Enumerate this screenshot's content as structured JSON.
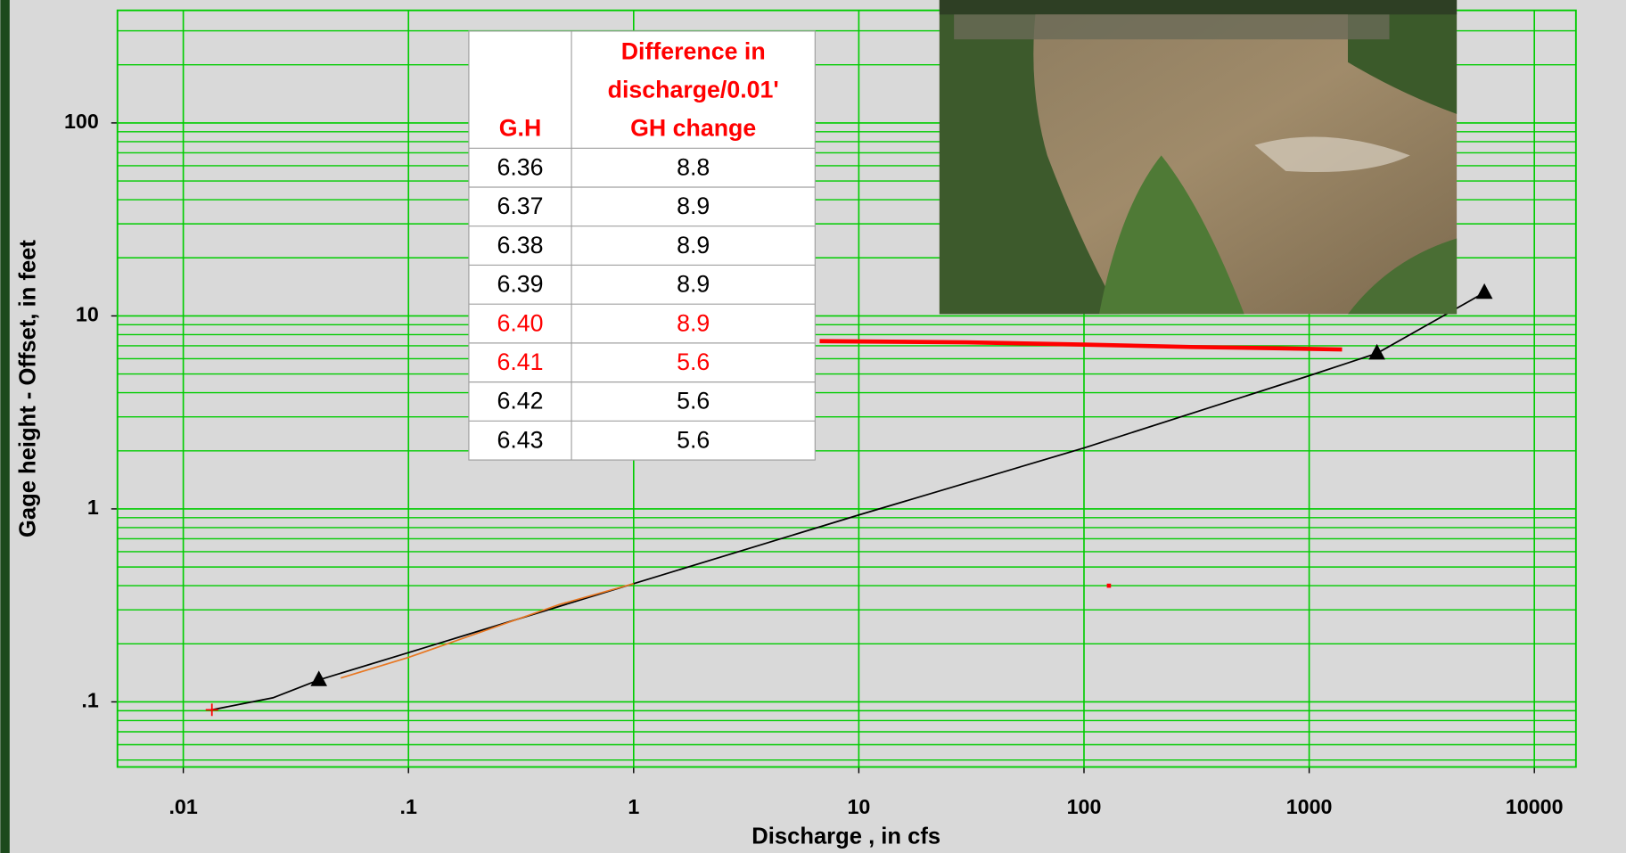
{
  "chart_data": {
    "type": "line",
    "x_label": "Discharge , in cfs",
    "y_label": "Gage height - Offset, in feet",
    "xscale": "log",
    "yscale": "log",
    "xlim": [
      0.0051,
      15300
    ],
    "ylim": [
      0.046,
      383
    ],
    "xticks": [
      {
        "value": 0.01,
        "label": ".01"
      },
      {
        "value": 0.1,
        "label": ".1"
      },
      1,
      10,
      100,
      1000,
      10000
    ],
    "yticks": [
      {
        "value": 0.1,
        "label": ".1"
      },
      1,
      10,
      100
    ],
    "y_minor_ticks": [
      0.05,
      0.06,
      0.07,
      0.08,
      0.09,
      0.2,
      0.3,
      0.4,
      0.5,
      0.6,
      0.7,
      0.8,
      0.9,
      2,
      3,
      4,
      5,
      6,
      7,
      8,
      9,
      20,
      30,
      40,
      50,
      60,
      70,
      80,
      90,
      200,
      300
    ],
    "grid": true,
    "grid_color": "#00cc00",
    "series": [
      {
        "color": "#000000",
        "width": 1.5,
        "x": [
          0.0134,
          0.025,
          0.04,
          0.1,
          1,
          10,
          100,
          1000,
          2000,
          6000
        ],
        "values": [
          0.091,
          0.105,
          0.13,
          0.18,
          0.41,
          0.93,
          2.07,
          4.9,
          6.4,
          13.2
        ]
      },
      {
        "color": "#e87722",
        "width": 1.5,
        "x": [
          0.05,
          0.1,
          0.47,
          1
        ],
        "values": [
          0.133,
          0.17,
          0.32,
          0.41
        ]
      },
      {
        "color": "#ff0000",
        "width": 4,
        "x": [
          6.7,
          30,
          100,
          300,
          700,
          1400
        ],
        "values": [
          7.4,
          7.3,
          7.1,
          6.9,
          6.8,
          6.7
        ]
      },
      {
        "color": "#000000",
        "marker": "triangle",
        "x": [
          0.04,
          2000,
          6000
        ],
        "values": [
          0.13,
          6.4,
          13.2
        ]
      },
      {
        "color": "#ff0000",
        "marker": "plus",
        "x": [
          0.0134
        ],
        "values": [
          0.091
        ]
      },
      {
        "color": "#ff0000",
        "marker": "dot",
        "x": [
          129
        ],
        "values": [
          0.4
        ]
      }
    ]
  },
  "table": {
    "header_color": "#ff0000",
    "highlight_color": "#ff0000",
    "highlight_rows": [
      4,
      5
    ],
    "header": [
      [
        "G.H"
      ],
      [
        "Difference in",
        "discharge/0.01'",
        "GH change"
      ]
    ],
    "rows": [
      [
        "6.36",
        "8.8"
      ],
      [
        "6.37",
        "8.9"
      ],
      [
        "6.38",
        "8.9"
      ],
      [
        "6.39",
        "8.9"
      ],
      [
        "6.40",
        "8.9"
      ],
      [
        "6.41",
        "5.6"
      ],
      [
        "6.42",
        "5.6"
      ],
      [
        "6.43",
        "5.6"
      ]
    ]
  }
}
